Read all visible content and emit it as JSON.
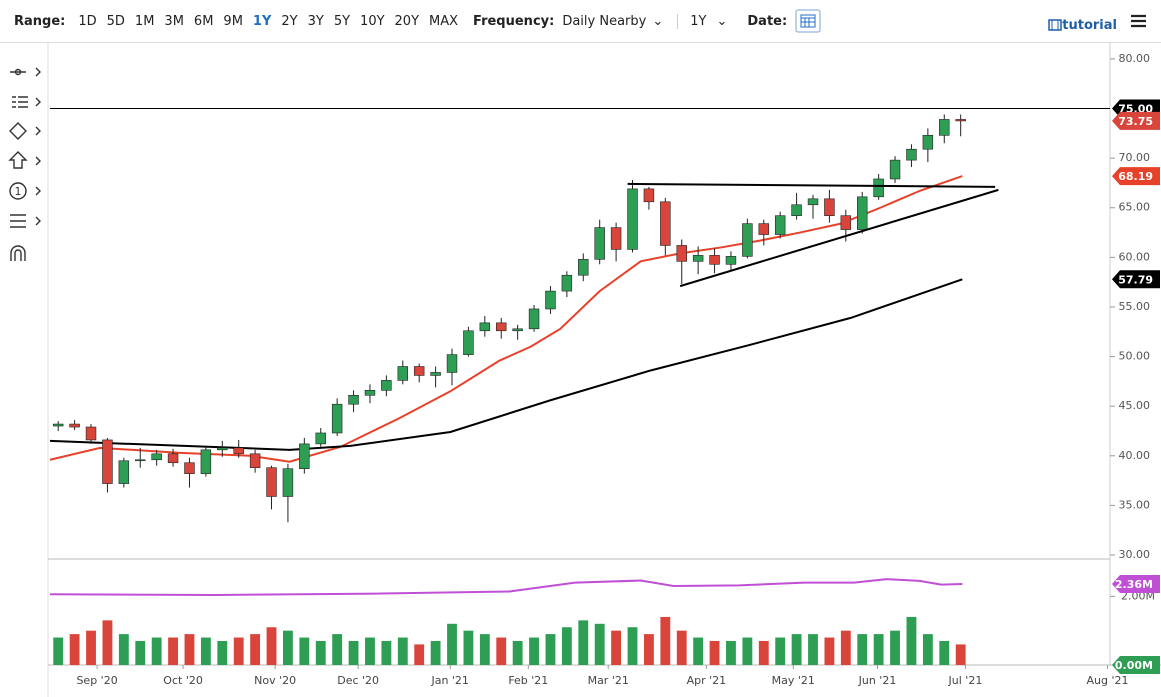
{
  "toolbar": {
    "range_label": "Range:",
    "ranges": [
      {
        "label": "1D"
      },
      {
        "label": "5D"
      },
      {
        "label": "1M"
      },
      {
        "label": "3M"
      },
      {
        "label": "6M"
      },
      {
        "label": "9M"
      },
      {
        "label": "1Y",
        "active": true
      },
      {
        "label": "2Y"
      },
      {
        "label": "3Y"
      },
      {
        "label": "5Y"
      },
      {
        "label": "10Y"
      },
      {
        "label": "20Y"
      },
      {
        "label": "MAX"
      }
    ],
    "frequency_label": "Frequency:",
    "frequency": "Daily Nearby",
    "period": "1Y",
    "date_label": "Date:",
    "tutorial": "tutorial"
  },
  "chart_data": {
    "type": "candlestick",
    "up_color": "#2f9e55",
    "down_color": "#d9453a",
    "x": [
      0.5,
      1.5,
      2.5,
      3.5,
      4.5,
      5.5,
      6.5,
      7.5,
      8.5,
      9.5,
      10.5,
      11.5,
      12.5,
      13.5,
      14.5,
      15.5,
      16.5,
      17.5,
      18.5,
      19.5,
      20.5,
      21.5,
      22.5,
      23.5,
      24.5,
      25.5,
      26.5,
      27.5,
      28.5,
      29.5,
      30.5,
      31.5,
      32.5,
      33.5,
      34.5,
      35.5,
      36.5,
      37.5,
      38.5,
      39.5,
      40.5,
      41.5,
      42.5,
      43.5,
      44.5,
      45.5,
      46.5,
      47.5,
      48.5,
      49.5,
      50.5,
      51.5,
      52.5,
      53.5,
      54.5,
      55.5
    ],
    "open": [
      43,
      43.2,
      42.9,
      41.6,
      37.2,
      39.5,
      39.6,
      40.2,
      39.3,
      38.2,
      40.6,
      40.8,
      40.2,
      38.8,
      35.9,
      38.7,
      41.2,
      42.3,
      45.2,
      46.1,
      46.6,
      47.6,
      49.0,
      48.1,
      48.4,
      50.2,
      52.6,
      53.4,
      52.6,
      52.8,
      54.8,
      56.6,
      58.2,
      59.8,
      63.0,
      60.8,
      66.9,
      65.6,
      61.2,
      59.6,
      60.2,
      59.3,
      60.1,
      63.4,
      62.3,
      64.2,
      65.3,
      65.9,
      64.2,
      62.8,
      66.1,
      67.9,
      69.8,
      70.9,
      72.3,
      73.9
    ],
    "high": [
      43.5,
      43.6,
      43.2,
      41.8,
      39.8,
      40.8,
      40.6,
      40.7,
      39.8,
      40.9,
      41.5,
      41.6,
      40.6,
      39.0,
      39.2,
      41.8,
      42.8,
      45.8,
      46.6,
      47.2,
      48.1,
      49.6,
      49.3,
      49.0,
      50.8,
      53.0,
      54.1,
      53.9,
      53.2,
      55.2,
      57.1,
      58.6,
      60.4,
      63.8,
      63.5,
      67.8,
      67.1,
      66.0,
      61.8,
      61.1,
      60.9,
      60.6,
      63.9,
      63.8,
      64.6,
      66.5,
      66.3,
      66.8,
      64.8,
      66.6,
      68.4,
      70.2,
      71.4,
      73.0,
      74.4,
      74.4
    ],
    "low": [
      42.5,
      42.6,
      41.2,
      36.3,
      36.8,
      38.8,
      39.0,
      38.9,
      36.8,
      37.9,
      39.9,
      39.8,
      38.3,
      34.6,
      33.3,
      38.2,
      40.9,
      42.0,
      44.4,
      45.3,
      46.0,
      47.2,
      47.4,
      46.9,
      47.1,
      50.0,
      52.0,
      51.8,
      51.7,
      52.5,
      54.3,
      56.0,
      57.6,
      59.3,
      59.6,
      60.5,
      64.8,
      60.2,
      57.3,
      58.3,
      58.4,
      58.7,
      59.9,
      61.2,
      61.9,
      63.8,
      63.9,
      63.5,
      61.6,
      62.4,
      65.8,
      67.5,
      69.1,
      69.6,
      71.5,
      72.2
    ],
    "close": [
      43.2,
      42.9,
      41.6,
      37.2,
      39.5,
      39.6,
      40.2,
      39.3,
      38.2,
      40.6,
      40.8,
      40.2,
      38.8,
      35.9,
      38.7,
      41.2,
      42.3,
      45.2,
      46.1,
      46.6,
      47.6,
      49.0,
      48.1,
      48.4,
      50.2,
      52.6,
      53.4,
      52.6,
      52.8,
      54.8,
      56.6,
      58.2,
      59.8,
      63.0,
      60.8,
      66.9,
      65.6,
      61.2,
      59.6,
      60.2,
      59.3,
      60.1,
      63.4,
      62.3,
      64.2,
      65.3,
      65.9,
      64.2,
      62.8,
      66.1,
      67.9,
      69.8,
      70.9,
      72.3,
      73.9,
      73.75
    ],
    "xlim": [
      0,
      64.6
    ],
    "xticks": [
      {
        "value": 2.87,
        "label": "Sep '20"
      },
      {
        "value": 8.11,
        "label": "Oct '20"
      },
      {
        "value": 13.72,
        "label": "Nov '20"
      },
      {
        "value": 18.78,
        "label": "Dec '20"
      },
      {
        "value": 24.39,
        "label": "Jan '21"
      },
      {
        "value": 29.15,
        "label": "Feb '21"
      },
      {
        "value": 34.02,
        "label": "Mar '21"
      },
      {
        "value": 40.0,
        "label": "Apr '21"
      },
      {
        "value": 45.3,
        "label": "May '21"
      },
      {
        "value": 50.43,
        "label": "Jun '21"
      },
      {
        "value": 55.79,
        "label": "Jul '21"
      },
      {
        "value": 64.45,
        "label": "Aug '21"
      }
    ],
    "ylim": [
      29.7,
      81.1
    ],
    "yticks": [
      {
        "value": 80,
        "label": "80.00"
      },
      {
        "value": 70,
        "label": "70.00"
      },
      {
        "value": 65,
        "label": "65.00"
      },
      {
        "value": 60,
        "label": "60.00"
      },
      {
        "value": 55,
        "label": "55.00"
      },
      {
        "value": 50,
        "label": "50.00"
      },
      {
        "value": 45,
        "label": "45.00"
      },
      {
        "value": 40,
        "label": "40.00"
      },
      {
        "value": 35,
        "label": "35.00"
      },
      {
        "value": 30,
        "label": "30.00"
      }
    ],
    "moving_averages": [
      {
        "color": "#e8412a",
        "x": [
          0,
          3.05,
          7.93,
          12.2,
          14.6,
          17.7,
          21.3,
          24.4,
          27.4,
          29.3,
          31.1,
          33.5,
          36.0,
          38.4,
          40.9,
          43.3,
          45.7,
          48.2,
          50.6,
          53.0,
          55.6
        ],
        "values": [
          39.6,
          40.8,
          40.3,
          40.0,
          39.4,
          40.9,
          43.8,
          46.5,
          49.6,
          51.0,
          52.8,
          56.6,
          59.6,
          60.4,
          61.0,
          61.7,
          62.5,
          63.4,
          65.0,
          66.7,
          68.19
        ]
      },
      {
        "color": "#000000",
        "x": [
          0,
          14.6,
          18.3,
          24.4,
          30.5,
          36.6,
          42.7,
          48.8,
          55.6
        ],
        "values": [
          41.5,
          40.6,
          41.0,
          42.4,
          45.6,
          48.6,
          51.2,
          53.9,
          57.79
        ]
      }
    ],
    "price_lines": [
      {
        "value": 75,
        "label": "75.00",
        "color": "#000000"
      }
    ],
    "trendlines": [
      {
        "x": [
          35.2,
          57.6
        ],
        "y": [
          67.4,
          67.1
        ]
      },
      {
        "x": [
          38.4,
          57.8
        ],
        "y": [
          57.1,
          66.8
        ]
      }
    ],
    "volume": {
      "ylim": [
        0,
        3
      ],
      "yticks": [
        {
          "value": 2,
          "label": "2.00M"
        }
      ],
      "values": [
        0.8,
        0.9,
        1.0,
        1.3,
        0.9,
        0.7,
        0.8,
        0.8,
        0.9,
        0.8,
        0.7,
        0.8,
        0.9,
        1.1,
        1.0,
        0.8,
        0.7,
        0.9,
        0.7,
        0.8,
        0.7,
        0.8,
        0.6,
        0.7,
        1.2,
        1.0,
        0.9,
        0.8,
        0.7,
        0.8,
        0.9,
        1.1,
        1.3,
        1.2,
        1.0,
        1.1,
        0.9,
        1.4,
        1.0,
        0.8,
        0.7,
        0.7,
        0.8,
        0.7,
        0.8,
        0.9,
        0.9,
        0.8,
        1.0,
        0.9,
        0.9,
        1.0,
        1.4,
        0.9,
        0.7,
        0.6
      ],
      "average": {
        "color": "#c04fd6",
        "x": [
          0,
          10,
          20,
          28,
          32,
          36,
          38,
          42,
          46,
          49,
          51,
          53,
          54.3,
          55.6
        ],
        "values": [
          2.06,
          2.04,
          2.08,
          2.14,
          2.4,
          2.46,
          2.3,
          2.32,
          2.4,
          2.4,
          2.5,
          2.45,
          2.34,
          2.36
        ]
      },
      "markers": [
        {
          "value": 2.36,
          "label": "2.36M",
          "color": "#c04fd6"
        },
        {
          "value": 0,
          "label": "0.00M",
          "color": "#2f9e55"
        }
      ]
    }
  }
}
